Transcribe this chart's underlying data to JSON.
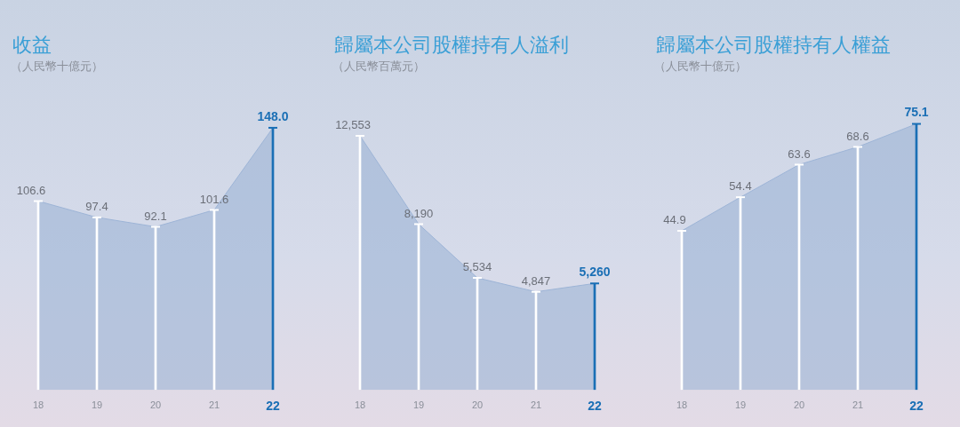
{
  "chart_data": [
    {
      "type": "area",
      "title": "收益",
      "subtitle": "（人民幣十億元）",
      "categories": [
        "18",
        "19",
        "20",
        "21",
        "22"
      ],
      "series": [
        {
          "color": "#9db4d6",
          "values": [
            106.6,
            97.4,
            92.1,
            101.6,
            148.0
          ]
        },
        {
          "type": "bar",
          "colors": [
            "#ffffff",
            "#ffffff",
            "#ffffff",
            "#ffffff",
            "#1a6fb5"
          ],
          "values": [
            106.6,
            97.4,
            92.1,
            101.6,
            148.0
          ],
          "value_labels": [
            "106.6",
            "97.4",
            "92.1",
            "101.6",
            "148.0"
          ]
        }
      ]
    },
    {
      "type": "area",
      "title": "歸屬本公司股權持有人溢利",
      "subtitle": "（人民幣百萬元）",
      "categories": [
        "18",
        "19",
        "20",
        "21",
        "22"
      ],
      "series": [
        {
          "color": "#9db4d6",
          "values": [
            12553,
            8190,
            5534,
            4847,
            5260
          ]
        },
        {
          "type": "bar",
          "colors": [
            "#ffffff",
            "#ffffff",
            "#ffffff",
            "#ffffff",
            "#1a6fb5"
          ],
          "values": [
            12553,
            8190,
            5534,
            4847,
            5260
          ],
          "value_labels": [
            "12,553",
            "8,190",
            "5,534",
            "4,847",
            "5,260"
          ]
        }
      ]
    },
    {
      "type": "area",
      "title": "歸屬本公司股權持有人權益",
      "subtitle": "（人民幣十億元）",
      "categories": [
        "18",
        "19",
        "20",
        "21",
        "22"
      ],
      "series": [
        {
          "color": "#9db4d6",
          "values": [
            44.9,
            54.4,
            63.6,
            68.6,
            75.1
          ]
        },
        {
          "type": "bar",
          "colors": [
            "#ffffff",
            "#ffffff",
            "#ffffff",
            "#ffffff",
            "#1a6fb5"
          ],
          "values": [
            44.9,
            54.4,
            63.6,
            68.6,
            75.1
          ],
          "value_labels": [
            "44.9",
            "54.4",
            "63.6",
            "68.6",
            "75.1"
          ]
        }
      ]
    }
  ]
}
